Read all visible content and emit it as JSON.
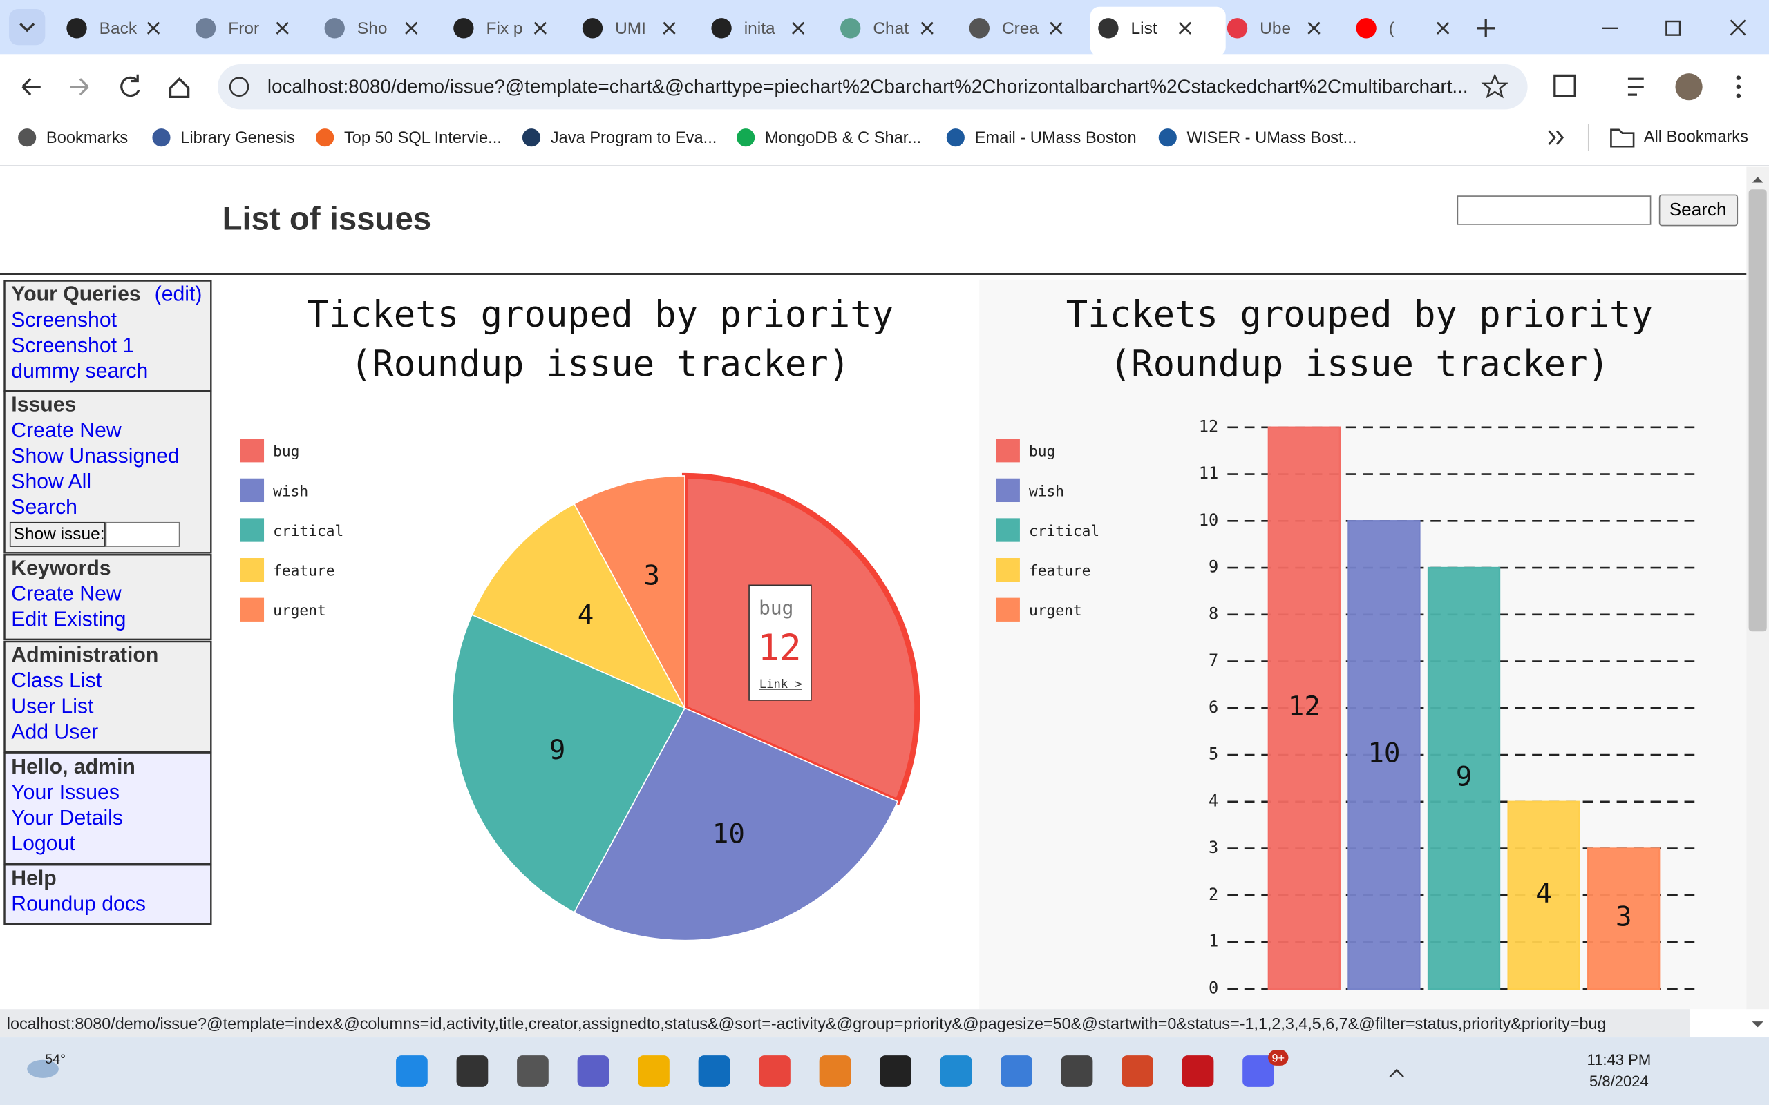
{
  "browser": {
    "tabs": [
      "Back",
      "Fror",
      "Sho",
      "Fix p",
      "UMI",
      "inita",
      "Chat",
      "Crea",
      "List",
      "Ube",
      "("
    ],
    "url": "localhost:8080/demo/issue?@template=chart&@charttype=piechart%2Cbarchart%2Chorizontalbarchart%2Cstackedchart%2Cmultibarchart...",
    "bookmarks": [
      "Bookmarks",
      "Library Genesis",
      "Top 50 SQL Intervie...",
      "Java Program to Eva...",
      "MongoDB & C Shar...",
      "Email - UMass Boston",
      "WISER - UMass Bost..."
    ],
    "all_bookmarks": "All Bookmarks",
    "status_url": "localhost:8080/demo/issue?@template=index&@columns=id,activity,title,creator,assignedto,status&@sort=-activity&@group=priority&@pagesize=50&@startwith=0&status=-1,1,2,3,4,5,6,7&@filter=status,priority&priority=bug"
  },
  "page": {
    "title": "List of issues",
    "search_button": "Search",
    "sidebar": [
      {
        "heading": "Your Queries",
        "extra": "(edit)",
        "links": [
          "Screenshot",
          "Screenshot 1",
          "dummy search"
        ]
      },
      {
        "heading": "Issues",
        "links": [
          "Create New",
          "Show Unassigned",
          "Show All",
          "Search"
        ],
        "input_label": "Show issue:"
      },
      {
        "heading": "Keywords",
        "links": [
          "Create New",
          "Edit Existing"
        ]
      },
      {
        "heading": "Administration",
        "links": [
          "Class List",
          "User List",
          "Add User"
        ]
      },
      {
        "heading": "Hello, admin",
        "links": [
          "Your Issues",
          "Your Details",
          "Logout"
        ]
      },
      {
        "heading": "Help",
        "links": [
          "Roundup docs"
        ]
      }
    ]
  },
  "chart_data": [
    {
      "type": "pie",
      "title": "Tickets grouped by priority",
      "subtitle": "(Roundup issue tracker)",
      "categories": [
        "bug",
        "wish",
        "critical",
        "feature",
        "urgent"
      ],
      "values": [
        12,
        10,
        9,
        4,
        3
      ],
      "colors": [
        "#f26b63",
        "#7682c9",
        "#4bb3aa",
        "#ffd04c",
        "#ff8a5a"
      ],
      "tooltip_link": "Link >"
    },
    {
      "type": "bar",
      "title": "Tickets grouped by priority",
      "subtitle": "(Roundup issue tracker)",
      "categories": [
        "bug",
        "wish",
        "critical",
        "feature",
        "urgent"
      ],
      "values": [
        12,
        10,
        9,
        4,
        3
      ],
      "colors": [
        "#f26b63",
        "#7682c9",
        "#4bb3aa",
        "#ffd04c",
        "#ff8a5a"
      ],
      "ylim": [
        0,
        12
      ],
      "yticks": [
        0,
        1,
        2,
        3,
        4,
        5,
        6,
        7,
        8,
        9,
        10,
        11,
        12
      ],
      "grid": true
    }
  ],
  "taskbar": {
    "weather": "54°",
    "time": "11:43 PM",
    "date": "5/8/2024",
    "badge": "9+"
  }
}
